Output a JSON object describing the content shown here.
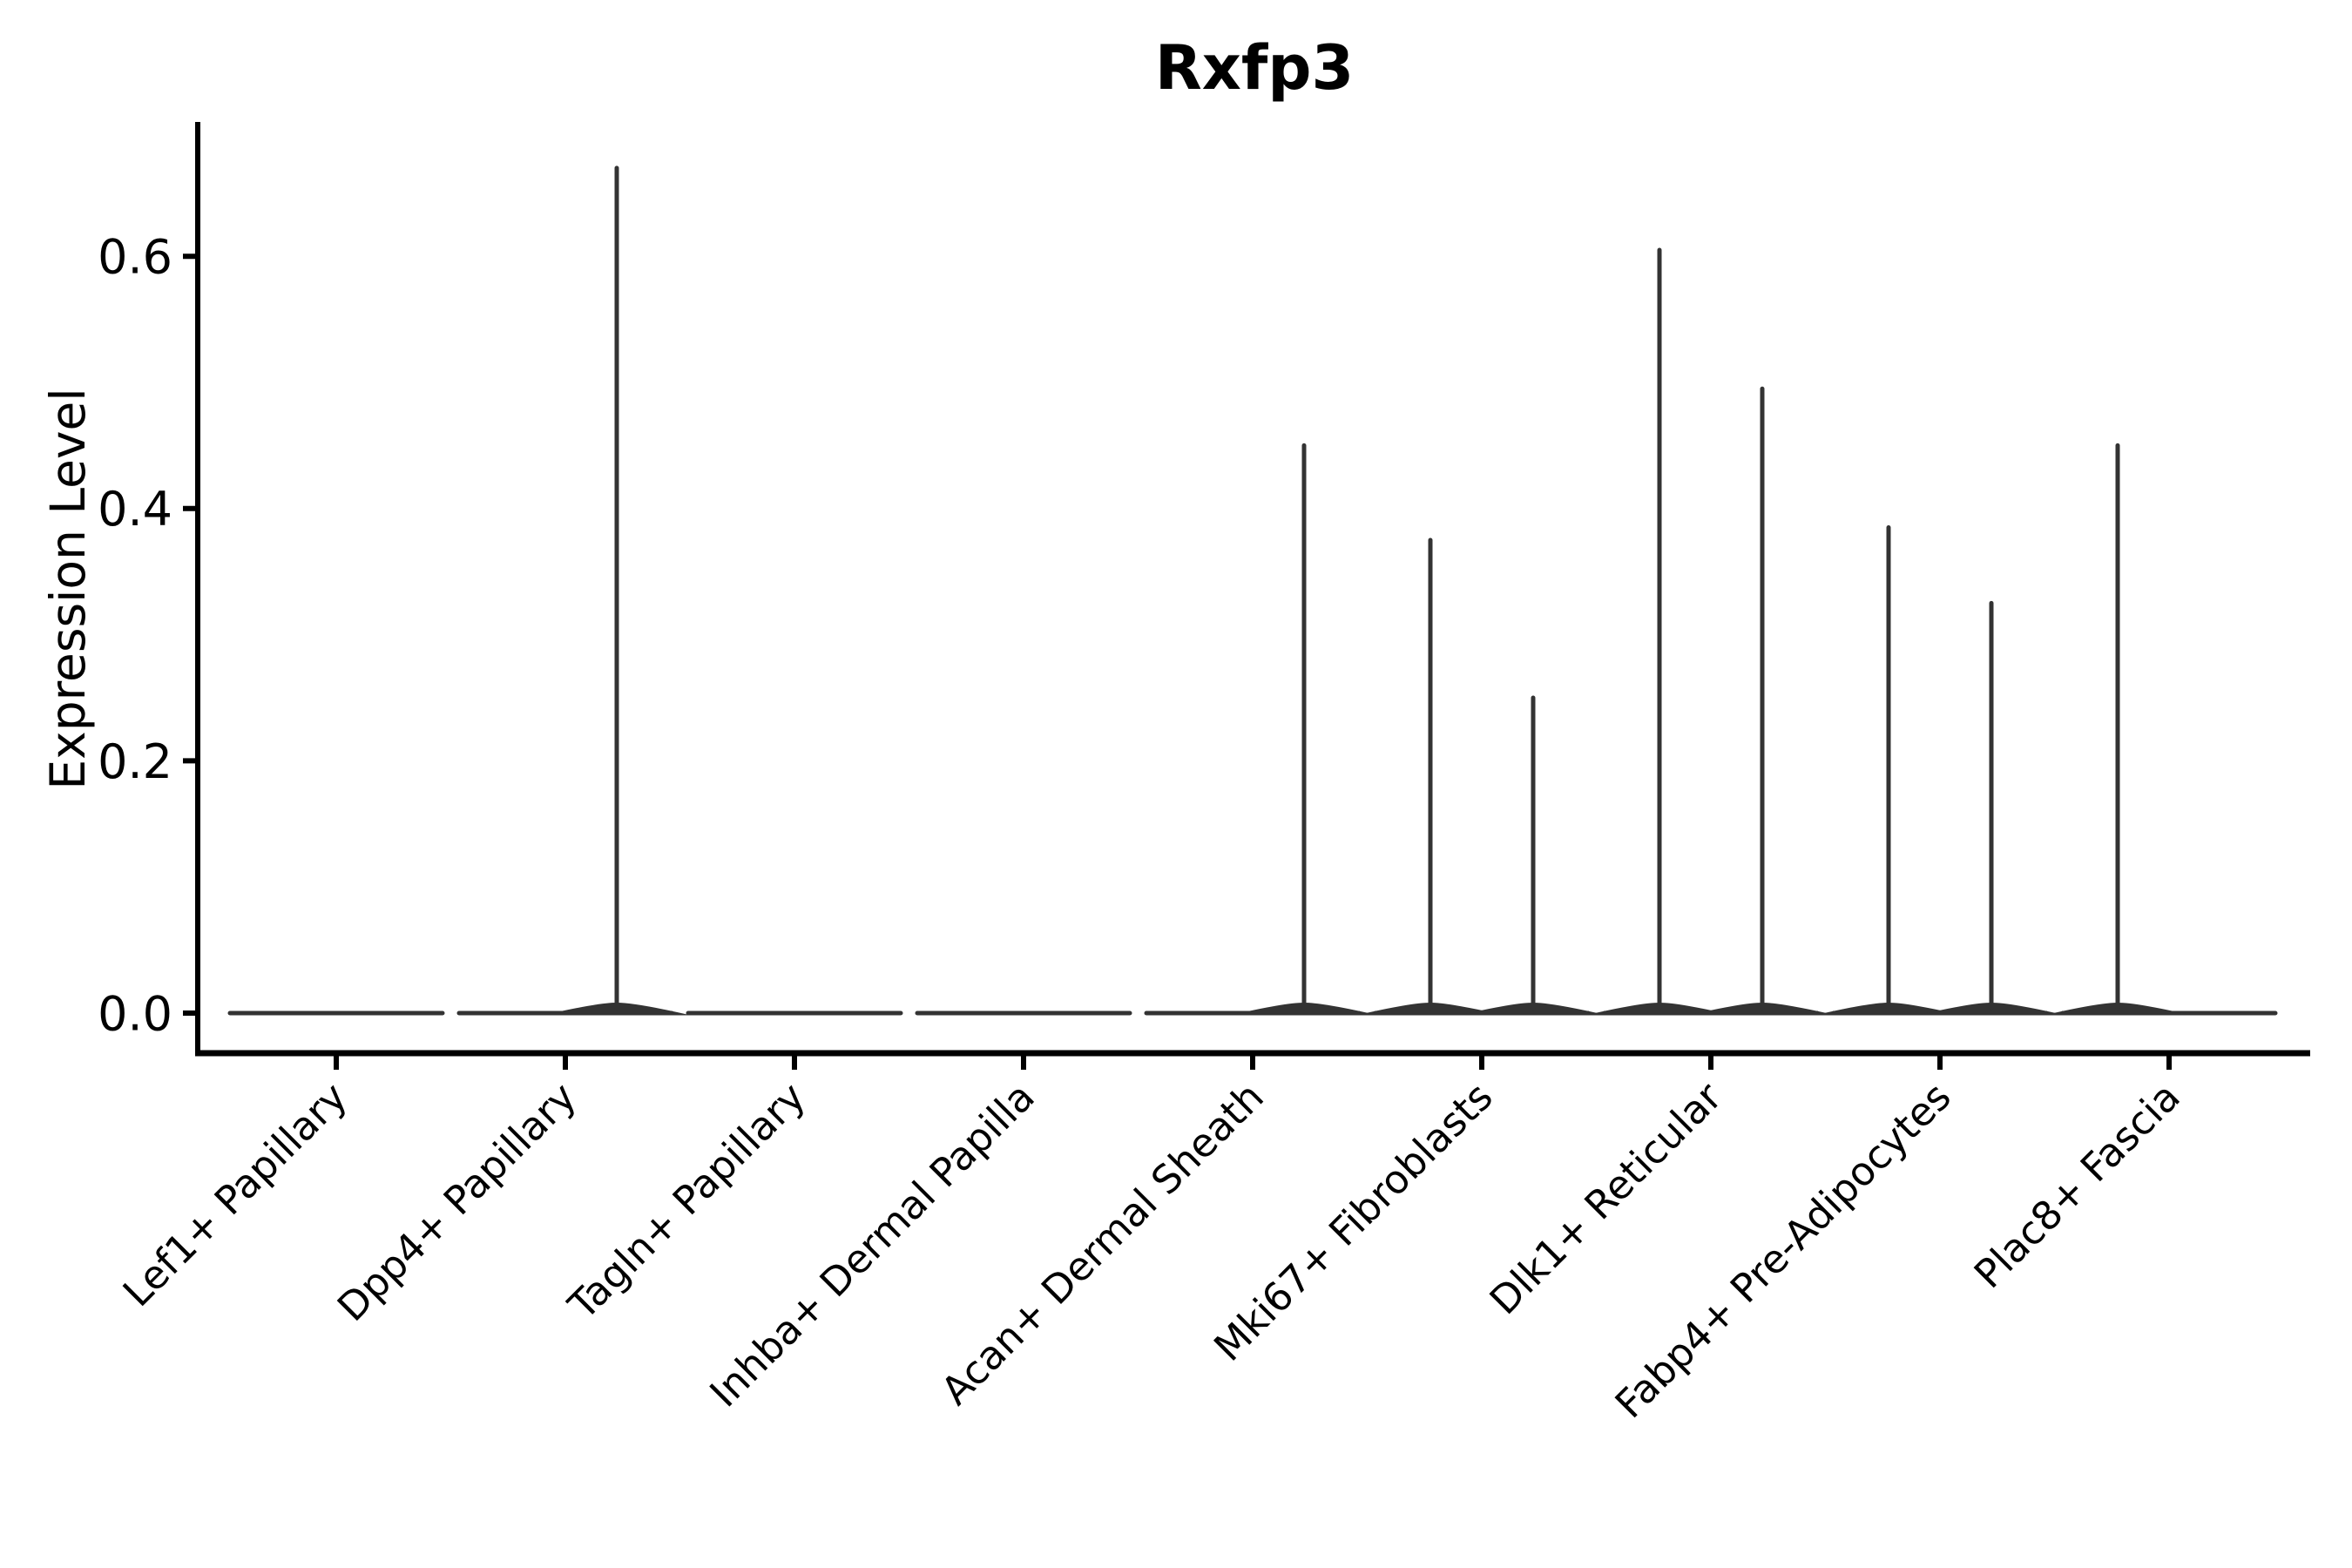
{
  "figure": {
    "background": "#ffffff"
  },
  "chart_data": {
    "type": "violin",
    "title": "Rxfp3",
    "xlabel": "",
    "ylabel": "Expression Level",
    "ylim": [
      0,
      0.71
    ],
    "yticks": [
      {
        "label": "0.0",
        "value": 0.0
      },
      {
        "label": "0.2",
        "value": 0.2
      },
      {
        "label": "0.4",
        "value": 0.4
      },
      {
        "label": "0.6",
        "value": 0.6
      }
    ],
    "grid": false,
    "legend": "none",
    "x_tick_rotation_deg": 45,
    "violin_color": "#333333",
    "axis_color": "#000000",
    "violins": [
      {
        "category": "Lef1+ Papillary",
        "baseline_value": 0.0,
        "spikes": []
      },
      {
        "category": "Dpp4+ Papillary",
        "baseline_value": 0.0,
        "spikes": [
          {
            "side": "right",
            "peak_value": 0.67
          }
        ]
      },
      {
        "category": "Tagln+ Papillary",
        "baseline_value": 0.0,
        "spikes": []
      },
      {
        "category": "Inhba+ Dermal Papilla",
        "baseline_value": 0.0,
        "spikes": []
      },
      {
        "category": "Acan+ Dermal Sheath",
        "baseline_value": 0.0,
        "spikes": [
          {
            "side": "right",
            "peak_value": 0.45
          }
        ]
      },
      {
        "category": "Mki67+ Fibroblasts",
        "baseline_value": 0.0,
        "spikes": [
          {
            "side": "left",
            "peak_value": 0.375
          },
          {
            "side": "right",
            "peak_value": 0.25
          }
        ]
      },
      {
        "category": "Dlk1+ Reticular",
        "baseline_value": 0.0,
        "spikes": [
          {
            "side": "left",
            "peak_value": 0.605
          },
          {
            "side": "right",
            "peak_value": 0.495
          }
        ]
      },
      {
        "category": "Fabp4+ Pre-Adipocytes",
        "baseline_value": 0.0,
        "spikes": [
          {
            "side": "left",
            "peak_value": 0.385
          },
          {
            "side": "right",
            "peak_value": 0.325
          }
        ]
      },
      {
        "category": "Plac8+ Fascia",
        "baseline_value": 0.0,
        "spikes": [
          {
            "side": "left",
            "peak_value": 0.45
          }
        ]
      }
    ]
  }
}
